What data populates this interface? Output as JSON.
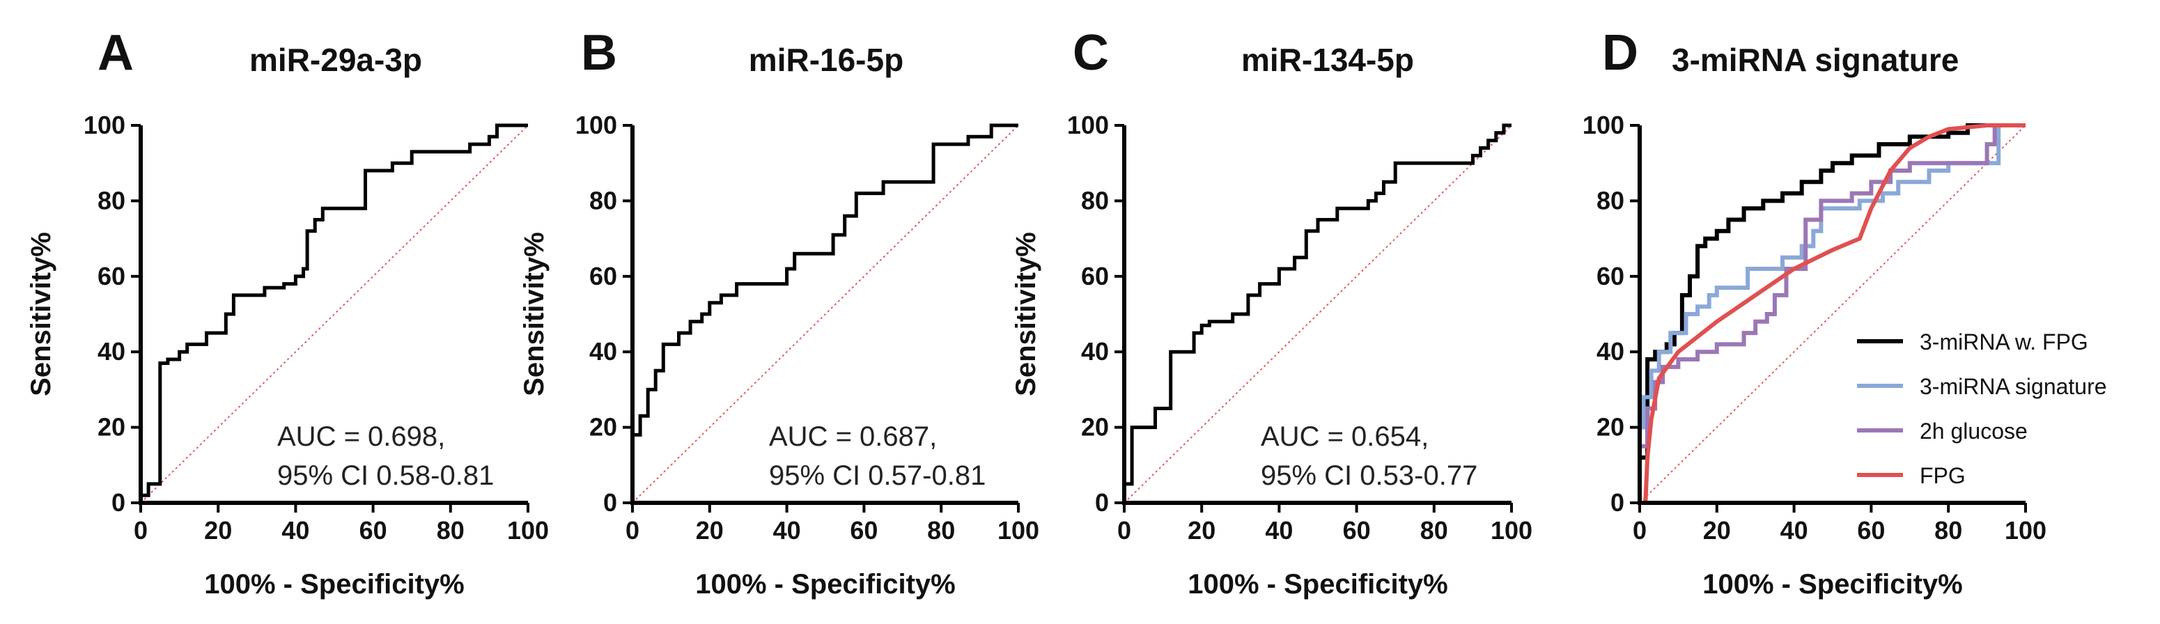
{
  "chart_data": [
    {
      "type": "line",
      "panel": "A",
      "title": "miR-29a-3p",
      "xlabel": "100% - Specificity%",
      "ylabel": "Sensitivity%",
      "xlim": [
        0,
        100
      ],
      "ylim": [
        0,
        100
      ],
      "xticks": [
        "0",
        "20",
        "40",
        "60",
        "80",
        "100"
      ],
      "yticks": [
        "0",
        "20",
        "40",
        "60",
        "80",
        "100"
      ],
      "annotation": [
        "AUC = 0.698,",
        "95% CI 0.58-0.81"
      ],
      "series": [
        {
          "color": "#000000",
          "x": [
            0,
            0,
            2,
            2,
            5,
            5,
            7,
            7,
            10,
            10,
            12,
            12,
            17,
            17,
            22,
            22,
            24,
            24,
            27,
            27,
            32,
            32,
            37,
            37,
            40,
            40,
            42,
            42,
            43,
            43,
            45,
            45,
            47,
            47,
            52,
            52,
            58,
            58,
            63,
            63,
            65,
            65,
            70,
            70,
            80,
            80,
            85,
            85,
            90,
            90,
            92,
            92,
            100
          ],
          "y": [
            0,
            2,
            2,
            5,
            5,
            37,
            37,
            38,
            38,
            40,
            40,
            42,
            42,
            45,
            45,
            50,
            50,
            55,
            55,
            55,
            55,
            57,
            57,
            58,
            58,
            60,
            60,
            62,
            62,
            72,
            72,
            75,
            75,
            78,
            78,
            78,
            78,
            88,
            88,
            88,
            88,
            90,
            90,
            93,
            93,
            93,
            93,
            95,
            95,
            97,
            97,
            100,
            100
          ]
        }
      ]
    },
    {
      "type": "line",
      "panel": "B",
      "title": "miR-16-5p",
      "xlabel": "100% - Specificity%",
      "ylabel": "Sensitivity%",
      "xlim": [
        0,
        100
      ],
      "ylim": [
        0,
        100
      ],
      "xticks": [
        "0",
        "20",
        "40",
        "60",
        "80",
        "100"
      ],
      "yticks": [
        "0",
        "20",
        "40",
        "60",
        "80",
        "100"
      ],
      "annotation": [
        "AUC = 0.687,",
        "95% CI 0.57-0.81"
      ],
      "series": [
        {
          "color": "#000000",
          "x": [
            0,
            0,
            2,
            2,
            4,
            4,
            6,
            6,
            8,
            8,
            12,
            12,
            15,
            15,
            18,
            18,
            20,
            20,
            23,
            23,
            27,
            27,
            40,
            40,
            42,
            42,
            52,
            52,
            55,
            55,
            58,
            58,
            60,
            60,
            65,
            65,
            72,
            72,
            78,
            78,
            87,
            87,
            93,
            93,
            100
          ],
          "y": [
            0,
            18,
            18,
            23,
            23,
            30,
            30,
            35,
            35,
            42,
            42,
            45,
            45,
            48,
            48,
            50,
            50,
            53,
            53,
            55,
            55,
            58,
            58,
            62,
            62,
            66,
            66,
            71,
            71,
            76,
            76,
            82,
            82,
            82,
            82,
            85,
            85,
            85,
            85,
            95,
            95,
            97,
            97,
            100,
            100
          ]
        }
      ]
    },
    {
      "type": "line",
      "panel": "C",
      "title": "miR-134-5p",
      "xlabel": "100% - Specificity%",
      "ylabel": "Sensitivity%",
      "xlim": [
        0,
        100
      ],
      "ylim": [
        0,
        100
      ],
      "xticks": [
        "0",
        "20",
        "40",
        "60",
        "80",
        "100"
      ],
      "yticks": [
        "0",
        "20",
        "40",
        "60",
        "80",
        "100"
      ],
      "annotation": [
        "AUC = 0.654,",
        "95% CI 0.53-0.77"
      ],
      "series": [
        {
          "color": "#000000",
          "x": [
            0,
            0,
            2,
            2,
            3,
            3,
            8,
            8,
            12,
            12,
            18,
            18,
            20,
            20,
            22,
            22,
            28,
            28,
            32,
            32,
            35,
            35,
            38,
            38,
            40,
            40,
            44,
            44,
            47,
            47,
            50,
            50,
            55,
            55,
            60,
            60,
            63,
            63,
            65,
            65,
            67,
            67,
            70,
            70,
            90,
            90,
            92,
            92,
            94,
            94,
            96,
            96,
            98,
            98,
            100
          ],
          "y": [
            0,
            5,
            5,
            20,
            20,
            20,
            20,
            25,
            25,
            40,
            40,
            45,
            45,
            47,
            47,
            48,
            48,
            50,
            50,
            55,
            55,
            58,
            58,
            58,
            58,
            62,
            62,
            65,
            65,
            72,
            72,
            75,
            75,
            78,
            78,
            78,
            78,
            80,
            80,
            82,
            82,
            85,
            85,
            90,
            90,
            92,
            92,
            94,
            94,
            96,
            96,
            98,
            98,
            100,
            100
          ]
        }
      ]
    },
    {
      "type": "line",
      "panel": "D",
      "title": "3-miRNA signature",
      "xlabel": "100% - Specificity%",
      "ylabel": "",
      "xlim": [
        0,
        100
      ],
      "ylim": [
        0,
        100
      ],
      "xticks": [
        "0",
        "20",
        "40",
        "60",
        "80",
        "100"
      ],
      "yticks": [
        "0",
        "20",
        "40",
        "60",
        "80",
        "100"
      ],
      "legend_position": "lower-right",
      "series": [
        {
          "name": "3-miRNA w. FPG",
          "color": "#000000",
          "x": [
            0,
            0,
            2,
            2,
            4,
            4,
            7,
            7,
            9,
            9,
            11,
            11,
            13,
            13,
            15,
            15,
            17,
            17,
            20,
            20,
            23,
            23,
            27,
            27,
            32,
            32,
            37,
            37,
            42,
            42,
            47,
            47,
            50,
            50,
            55,
            55,
            62,
            62,
            70,
            70,
            80,
            80,
            85,
            85,
            100
          ],
          "y": [
            0,
            12,
            12,
            38,
            38,
            40,
            40,
            42,
            42,
            45,
            45,
            55,
            55,
            60,
            60,
            68,
            68,
            70,
            70,
            72,
            72,
            75,
            75,
            78,
            78,
            80,
            80,
            82,
            82,
            85,
            85,
            88,
            88,
            90,
            90,
            92,
            92,
            95,
            95,
            97,
            97,
            98,
            98,
            100,
            100
          ]
        },
        {
          "name": "3-miRNA signature",
          "color": "#8aa8d8",
          "x": [
            0,
            0,
            1,
            1,
            3,
            3,
            5,
            5,
            8,
            8,
            12,
            12,
            15,
            15,
            18,
            18,
            20,
            20,
            28,
            28,
            37,
            37,
            42,
            42,
            45,
            45,
            47,
            47,
            57,
            57,
            63,
            63,
            67,
            67,
            75,
            75,
            80,
            80,
            93,
            93,
            100
          ],
          "y": [
            0,
            20,
            20,
            28,
            28,
            35,
            35,
            40,
            40,
            45,
            45,
            50,
            50,
            52,
            52,
            55,
            55,
            57,
            57,
            62,
            62,
            65,
            65,
            68,
            68,
            72,
            72,
            78,
            78,
            80,
            80,
            82,
            82,
            85,
            85,
            88,
            88,
            90,
            90,
            100,
            100
          ]
        },
        {
          "name": "2h glucose",
          "color": "#9b77b5",
          "x": [
            0,
            0,
            2,
            2,
            4,
            4,
            6,
            6,
            10,
            10,
            15,
            15,
            20,
            20,
            27,
            27,
            30,
            30,
            33,
            33,
            35,
            35,
            38,
            38,
            43,
            43,
            47,
            47,
            55,
            55,
            60,
            60,
            65,
            65,
            70,
            70,
            90,
            90,
            92,
            92,
            100
          ],
          "y": [
            0,
            15,
            15,
            25,
            25,
            32,
            32,
            36,
            36,
            38,
            38,
            40,
            40,
            42,
            42,
            45,
            45,
            48,
            48,
            50,
            50,
            55,
            55,
            62,
            62,
            75,
            75,
            80,
            80,
            82,
            82,
            85,
            85,
            88,
            88,
            90,
            90,
            95,
            95,
            100,
            100
          ]
        },
        {
          "name": "FPG",
          "color": "#e05050",
          "x": [
            1.5,
            2,
            3,
            5,
            10,
            20,
            30,
            40,
            50,
            57,
            60,
            65,
            70,
            75,
            80,
            90,
            100
          ],
          "y": [
            0,
            12,
            22,
            33,
            40,
            48,
            55,
            62,
            67,
            70,
            78,
            88,
            94,
            97,
            99,
            100,
            100
          ]
        }
      ]
    }
  ]
}
